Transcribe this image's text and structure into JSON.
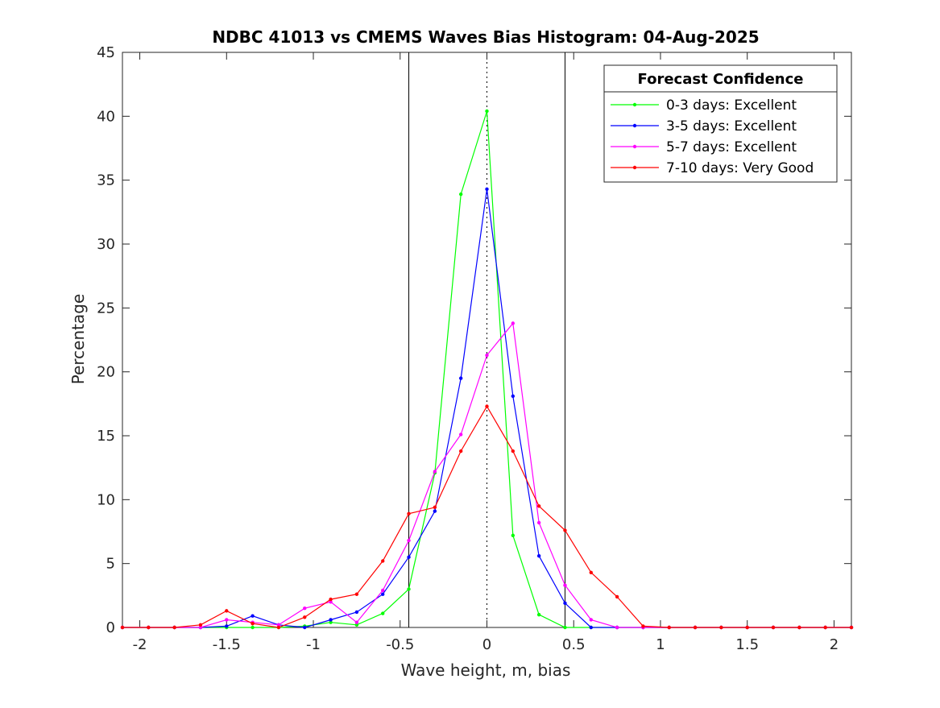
{
  "chart_data": {
    "type": "line",
    "title": "NDBC 41013 vs CMEMS Waves Bias Histogram: 04-Aug-2025",
    "xlabel": "Wave height, m, bias",
    "ylabel": "Percentage",
    "xlim": [
      -2.1,
      2.1
    ],
    "ylim": [
      0,
      45
    ],
    "xticks": [
      -2,
      -1.5,
      -1,
      -0.5,
      0,
      0.5,
      1,
      1.5,
      2
    ],
    "xtick_labels": [
      "-2",
      "-1.5",
      "-1",
      "-0.5",
      "0",
      "0.5",
      "1",
      "1.5",
      "2"
    ],
    "yticks": [
      0,
      5,
      10,
      15,
      20,
      25,
      30,
      35,
      40,
      45
    ],
    "ytick_labels": [
      "0",
      "5",
      "10",
      "15",
      "20",
      "25",
      "30",
      "35",
      "40",
      "45"
    ],
    "grid": false,
    "legend": {
      "title": "Forecast Confidence",
      "placement": "top-right"
    },
    "reference_lines": [
      {
        "x": -0.45,
        "style": "solid"
      },
      {
        "x": 0,
        "style": "dotted"
      },
      {
        "x": 0.45,
        "style": "solid"
      }
    ],
    "x": [
      -2.1,
      -1.95,
      -1.8,
      -1.65,
      -1.5,
      -1.35,
      -1.2,
      -1.05,
      -0.9,
      -0.75,
      -0.6,
      -0.45,
      -0.3,
      -0.15,
      0,
      0.15,
      0.3,
      0.45,
      0.6,
      0.75,
      0.9,
      1.05,
      1.2,
      1.35,
      1.5,
      1.65,
      1.8,
      1.95,
      2.1
    ],
    "series": [
      {
        "name": "0-3 days: Excellent",
        "color": "#00ff00",
        "values": [
          0,
          0,
          0,
          0,
          0,
          0,
          0,
          0.1,
          0.4,
          0.2,
          1.1,
          3.0,
          12.1,
          33.9,
          40.4,
          7.2,
          1.0,
          0,
          0,
          0,
          0,
          0,
          0,
          0,
          0,
          0,
          0,
          0,
          0
        ]
      },
      {
        "name": "3-5 days: Excellent",
        "color": "#0000ff",
        "values": [
          0,
          0,
          0,
          0,
          0.1,
          0.9,
          0.2,
          0,
          0.6,
          1.2,
          2.6,
          5.5,
          9.1,
          19.5,
          34.3,
          18.1,
          5.6,
          1.9,
          0,
          0,
          0,
          0,
          0,
          0,
          0,
          0,
          0,
          0,
          0
        ]
      },
      {
        "name": "5-7 days: Excellent",
        "color": "#ff00ff",
        "values": [
          0,
          0,
          0,
          0,
          0.6,
          0.4,
          0.2,
          1.5,
          2.0,
          0.4,
          2.9,
          6.8,
          12.2,
          15.1,
          21.3,
          23.8,
          8.2,
          3.3,
          0.6,
          0,
          0,
          0,
          0,
          0,
          0,
          0,
          0,
          0,
          0
        ]
      },
      {
        "name": "7-10 days: Very Good",
        "color": "#ff0000",
        "values": [
          0,
          0,
          0,
          0.2,
          1.3,
          0.3,
          0,
          0.8,
          2.2,
          2.6,
          5.2,
          8.9,
          9.4,
          13.8,
          17.3,
          13.8,
          9.5,
          7.6,
          4.3,
          2.4,
          0.1,
          0,
          0,
          0,
          0,
          0,
          0,
          0,
          0
        ]
      }
    ]
  }
}
